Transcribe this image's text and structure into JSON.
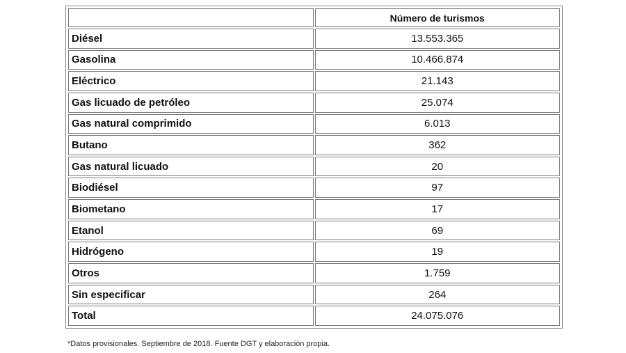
{
  "table": {
    "header": {
      "label_column": "",
      "value_column": "Número de turismos"
    },
    "rows": [
      {
        "label": "Diésel",
        "value": "13.553.365"
      },
      {
        "label": "Gasolina",
        "value": "10.466.874"
      },
      {
        "label": "Eléctrico",
        "value": "21.143"
      },
      {
        "label": "Gas licuado de petróleo",
        "value": "25.074"
      },
      {
        "label": "Gas natural comprimido",
        "value": "6.013"
      },
      {
        "label": "Butano",
        "value": "362"
      },
      {
        "label": "Gas natural licuado",
        "value": "20"
      },
      {
        "label": "Biodiésel",
        "value": "97"
      },
      {
        "label": "Biometano",
        "value": "17"
      },
      {
        "label": "Etanol",
        "value": "69"
      },
      {
        "label": "Hidrógeno",
        "value": "19"
      },
      {
        "label": "Otros",
        "value": "1.759"
      },
      {
        "label": "Sin especificar",
        "value": "264"
      },
      {
        "label": "Total",
        "value": "24.075.076"
      }
    ]
  },
  "footnote": "*Datos provisionales. Septiembre de 2018. Fuente DGT y elaboración propia.",
  "colors": {
    "border": "#7a7a7a",
    "text": "#111111",
    "background": "#ffffff"
  }
}
